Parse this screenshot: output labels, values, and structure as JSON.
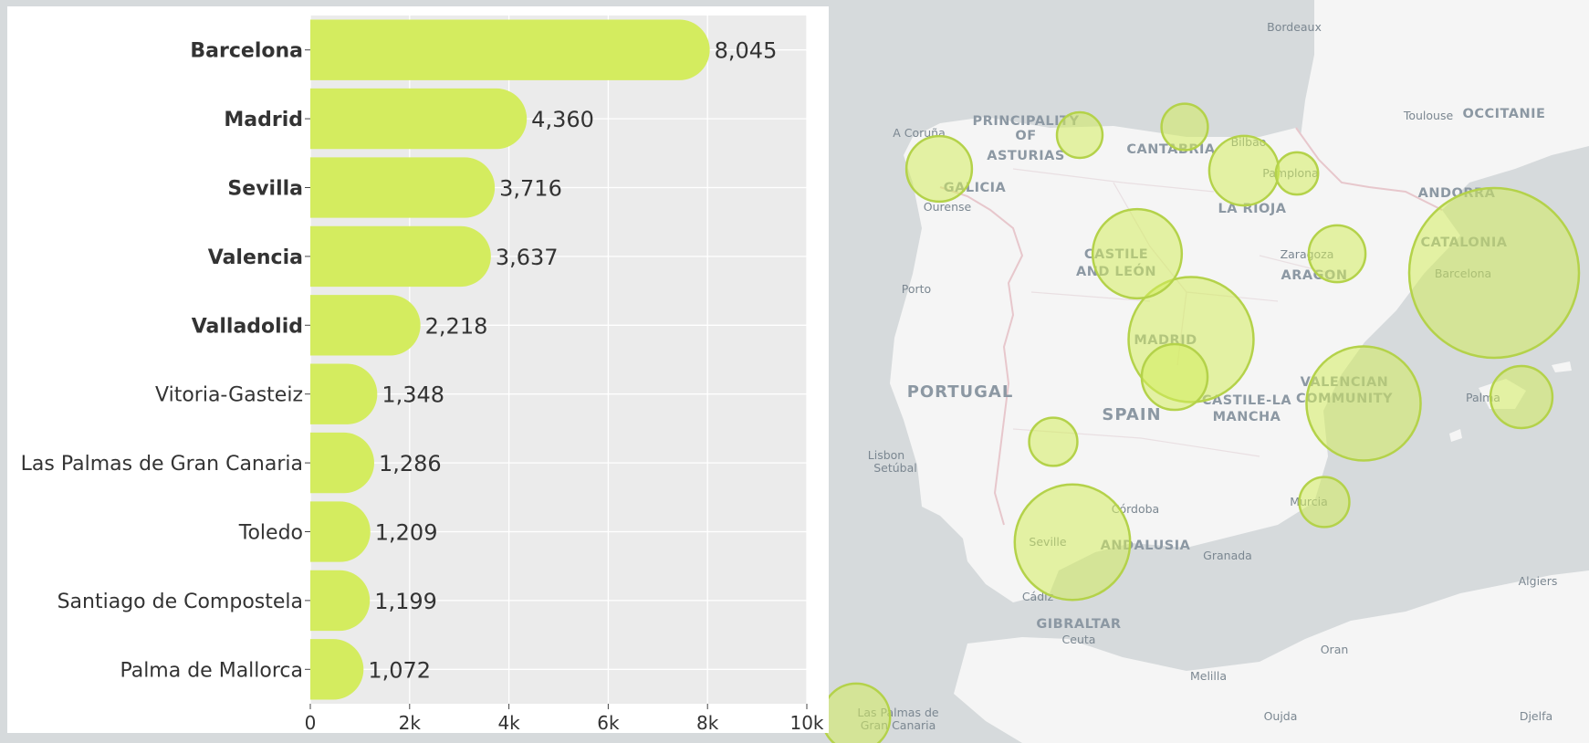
{
  "chart_data": {
    "type": "bar",
    "orientation": "horizontal",
    "categories": [
      "Barcelona",
      "Madrid",
      "Sevilla",
      "Valencia",
      "Valladolid",
      "Vitoria-Gasteiz",
      "Las Palmas de Gran Canaria",
      "Toledo",
      "Santiago de Compostela",
      "Palma de Mallorca"
    ],
    "values": [
      8045,
      4360,
      3716,
      3637,
      2218,
      1348,
      1286,
      1209,
      1199,
      1072
    ],
    "value_labels": [
      "8,045",
      "4,360",
      "3,716",
      "3,637",
      "2,218",
      "1,348",
      "1,286",
      "1,209",
      "1,199",
      "1,072"
    ],
    "bold_categories": [
      "Barcelona",
      "Madrid",
      "Sevilla",
      "Valencia",
      "Valladolid"
    ],
    "xlim": [
      0,
      10000
    ],
    "xticks": [
      0,
      2000,
      4000,
      6000,
      8000,
      10000
    ],
    "xtick_labels": [
      "0",
      "2k",
      "4k",
      "6k",
      "8k",
      "10k"
    ],
    "grid": true,
    "colors": {
      "bar": "#d4ec5f",
      "plot_bg": "#ebebeb",
      "grid": "#ffffff",
      "label": "#333333"
    }
  },
  "map": {
    "colors": {
      "water": "#d6dadc",
      "land": "#f5f5f5",
      "border": "#e7c7cc",
      "marker_fill": "#d4ec5f",
      "marker_stroke": "#b4d24a"
    },
    "country_labels": [
      "PORTUGAL",
      "SPAIN"
    ],
    "region_labels": [
      "GALICIA",
      "PRINCIPALITY",
      "OF",
      "ASTURIAS",
      "CANTABRIA",
      "LA RIOJA",
      "CASTILE",
      "AND LEÓN",
      "ARAGON",
      "ANDORRA",
      "CATALONIA",
      "OCCITANIE",
      "MADRID",
      "CASTILE-LA",
      "MANCHA",
      "VALENCIAN",
      "COMMUNITY",
      "ANDALUSIA",
      "GIBRALTAR"
    ],
    "city_labels": [
      "Bordeaux",
      "A Coruña",
      "Bilbao",
      "Toulouse",
      "Pamplona",
      "Ourense",
      "Zaragoza",
      "Barcelona",
      "Porto",
      "Palma",
      "Lisbon",
      "Setúbal",
      "Córdoba",
      "Murcia",
      "Granada",
      "Seville",
      "Cádiz",
      "Ceuta",
      "Algiers",
      "Oran",
      "Melilla",
      "Oujda",
      "Djelfa",
      "Las Palmas de",
      "Gran Canaria"
    ],
    "markers": [
      {
        "name": "Barcelona",
        "value": 8045
      },
      {
        "name": "Madrid",
        "value": 4360
      },
      {
        "name": "Sevilla",
        "value": 3716
      },
      {
        "name": "Valencia",
        "value": 3637
      },
      {
        "name": "Valladolid",
        "value": 2218
      },
      {
        "name": "Vitoria-Gasteiz",
        "value": 1348
      },
      {
        "name": "Las Palmas de Gran Canaria",
        "value": 1286
      },
      {
        "name": "Toledo",
        "value": 1209
      },
      {
        "name": "Santiago de Compostela",
        "value": 1199
      },
      {
        "name": "Palma de Mallorca",
        "value": 1072
      },
      {
        "name": "Zaragoza",
        "value": 900
      },
      {
        "name": "Murcia",
        "value": 700
      },
      {
        "name": "Cáceres",
        "value": 650
      },
      {
        "name": "Santander",
        "value": 600
      },
      {
        "name": "Oviedo",
        "value": 580
      },
      {
        "name": "Pamplona",
        "value": 500
      }
    ]
  }
}
